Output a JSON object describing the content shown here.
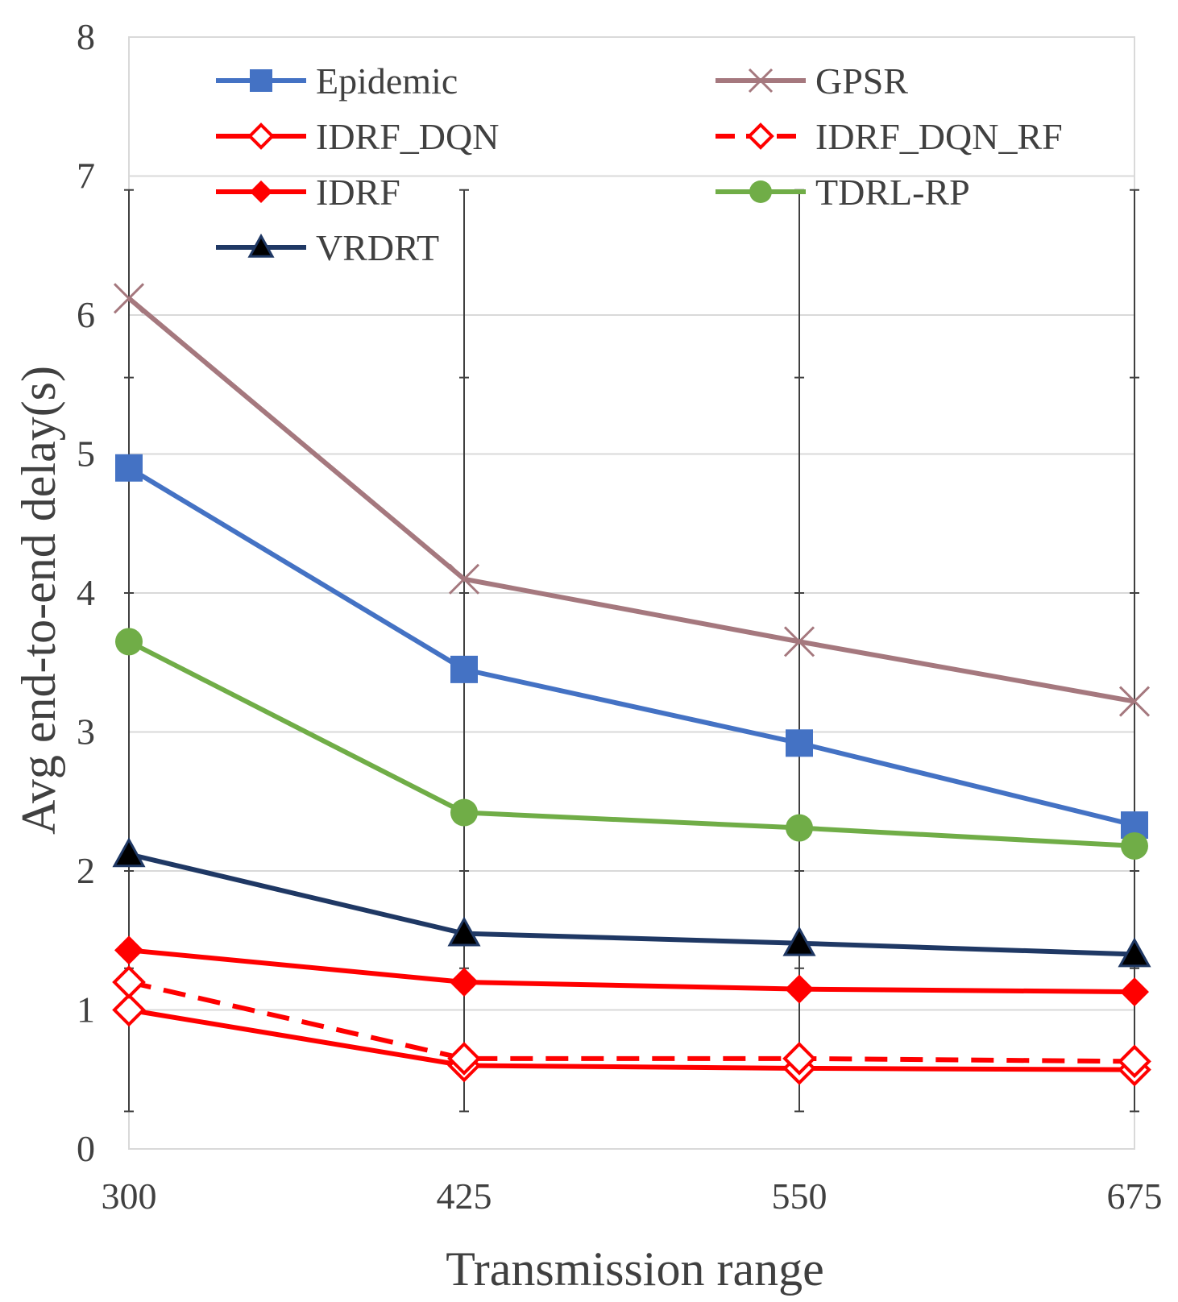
{
  "chart_data": {
    "type": "line",
    "title": "",
    "xlabel": "Transmission range",
    "ylabel": "Avg end-to-end delay(s)",
    "x": [
      300,
      425,
      550,
      675
    ],
    "x_tick_labels": [
      "300",
      "425",
      "550",
      "675"
    ],
    "ylim": [
      0,
      8
    ],
    "y_ticks": [
      0,
      1,
      2,
      3,
      4,
      5,
      6,
      7,
      8
    ],
    "y_tick_labels": [
      "0",
      "1",
      "2",
      "3",
      "4",
      "5",
      "6",
      "7",
      "8"
    ],
    "grid": true,
    "legend_position": "top",
    "series": [
      {
        "name": "Epidemic",
        "values": [
          4.9,
          3.45,
          2.92,
          2.33
        ],
        "color": "#4472C4",
        "marker": "square",
        "dash": "solid"
      },
      {
        "name": "GPSR",
        "values": [
          6.12,
          4.1,
          3.65,
          3.22
        ],
        "color": "#A5787E",
        "marker": "x",
        "dash": "solid"
      },
      {
        "name": "IDRF_DQN",
        "values": [
          1.0,
          0.6,
          0.58,
          0.57
        ],
        "color": "#FF0000",
        "marker": "diamond-open",
        "dash": "solid"
      },
      {
        "name": "IDRF_DQN_RF",
        "values": [
          1.2,
          0.65,
          0.65,
          0.63
        ],
        "color": "#FF0000",
        "marker": "diamond-open",
        "dash": "dashed"
      },
      {
        "name": "IDRF",
        "values": [
          1.43,
          1.2,
          1.15,
          1.13
        ],
        "color": "#FF0000",
        "marker": "diamond",
        "dash": "solid"
      },
      {
        "name": "TDRL-RP",
        "values": [
          3.65,
          2.42,
          2.31,
          2.18
        ],
        "color": "#70AD47",
        "marker": "circle",
        "dash": "solid"
      },
      {
        "name": "VRDRT",
        "values": [
          2.12,
          1.55,
          1.48,
          1.4
        ],
        "color": "#1F3864",
        "marker": "triangle",
        "dash": "solid"
      }
    ]
  }
}
